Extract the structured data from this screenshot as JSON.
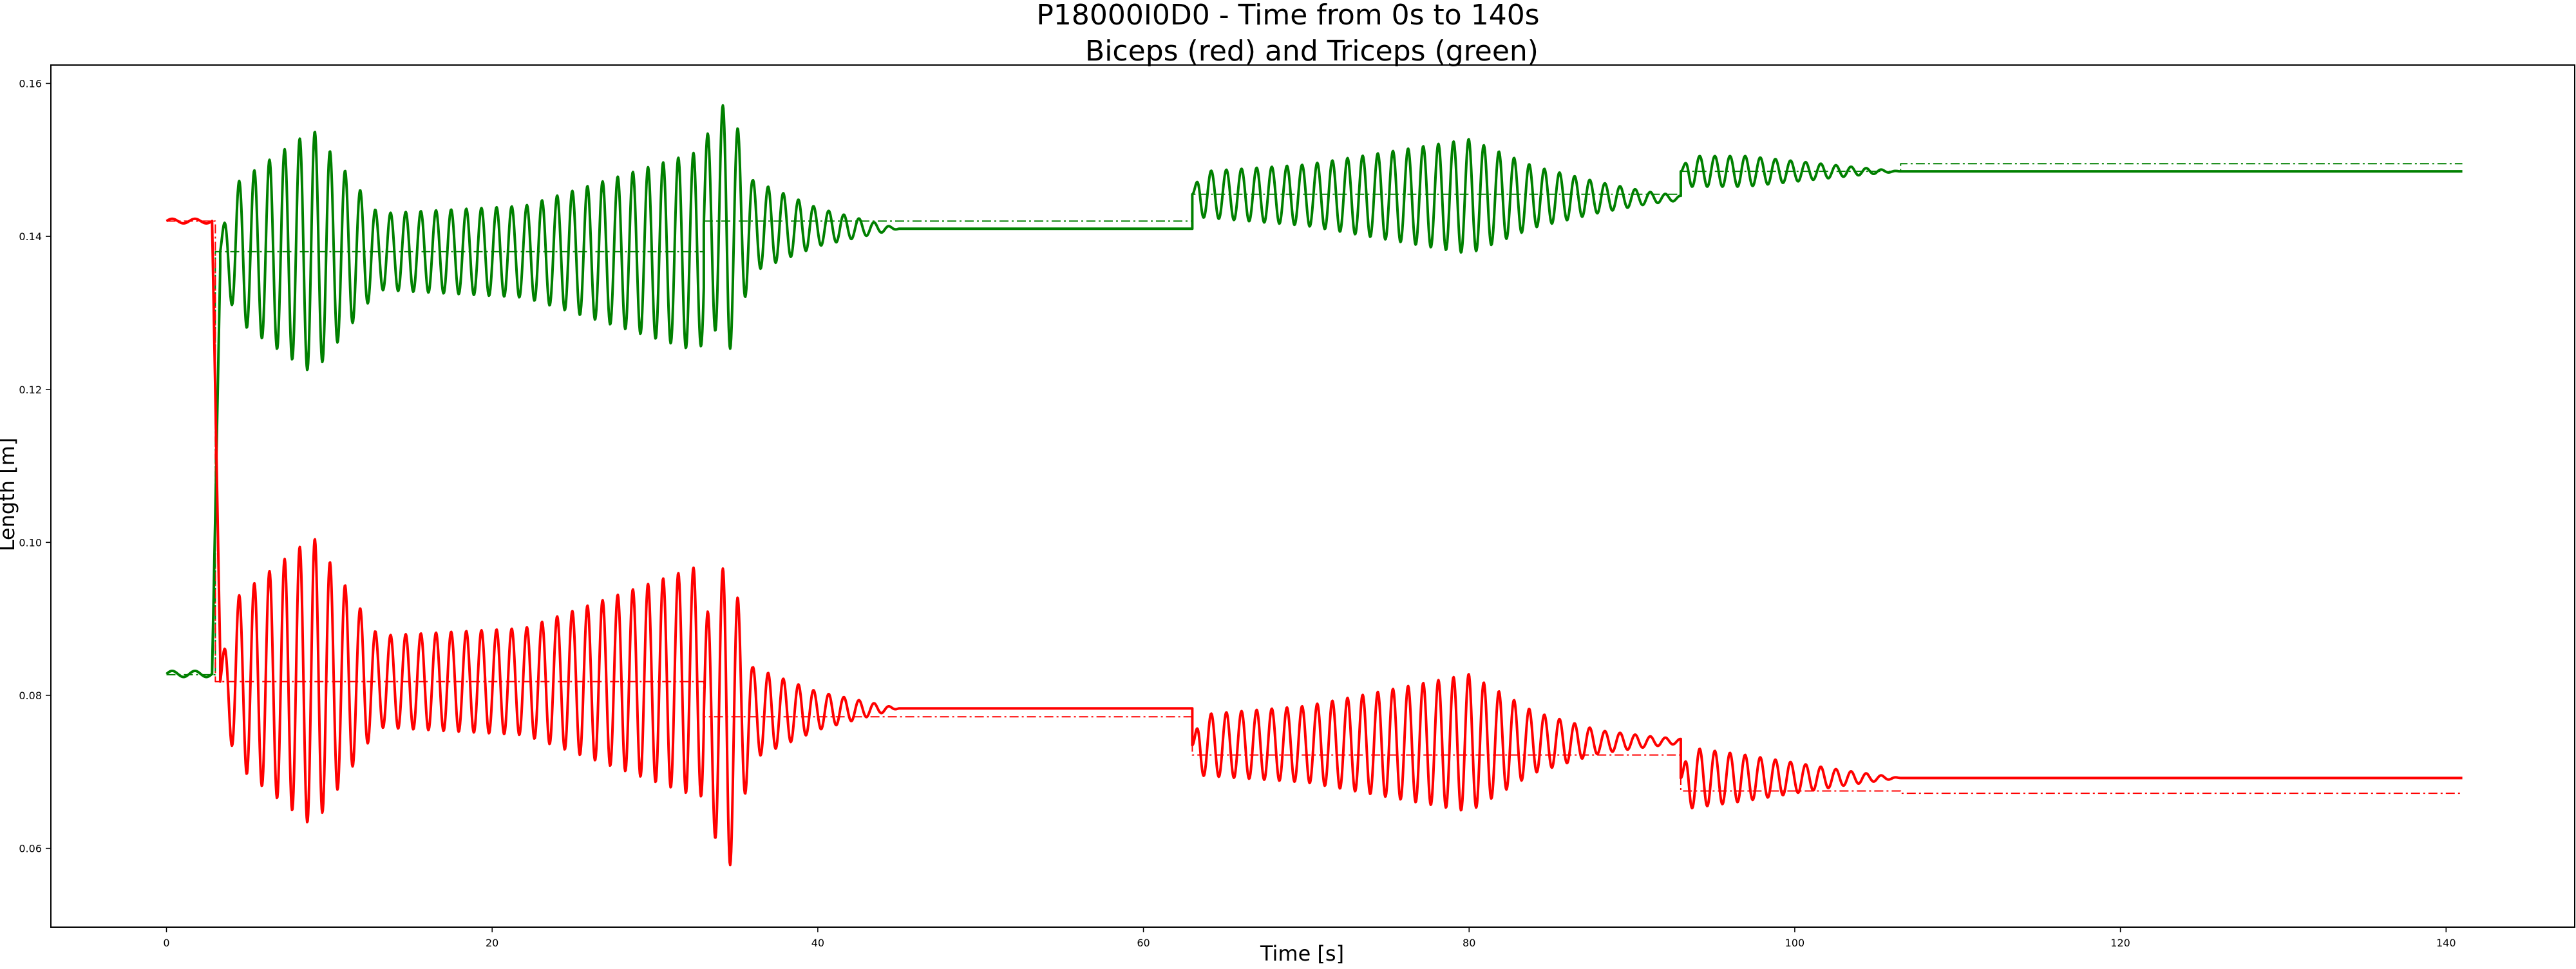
{
  "chart_data": {
    "type": "line",
    "title": "P18000I0D0 - Time from 0s to 140s",
    "subtitle": "Biceps (red) and Triceps (green)",
    "xlabel": "Time [s]",
    "ylabel": "Length [m]",
    "xlim": [
      -7.1,
      147.9
    ],
    "ylim": [
      0.0497,
      0.1624
    ],
    "xticks": [
      0,
      20,
      40,
      60,
      80,
      100,
      120,
      140
    ],
    "yticks": [
      0.06,
      0.08,
      0.1,
      0.12,
      0.14,
      0.16
    ],
    "ytick_labels": [
      "0.06",
      "0.08",
      "0.10",
      "0.12",
      "0.14",
      "0.16"
    ],
    "grid": false,
    "legend": "none",
    "colors": {
      "biceps": "#ff0000",
      "triceps": "#008000"
    },
    "series": [
      {
        "key": "triceps_target",
        "style": "dashdot",
        "color": "#008000",
        "x": [
          0,
          3.0,
          3.0,
          33.0,
          33.0,
          63.0,
          63.0,
          93.0,
          93.0,
          106.5,
          106.5,
          141
        ],
        "y": [
          0.0827,
          0.0827,
          0.138,
          0.138,
          0.142,
          0.142,
          0.1455,
          0.1455,
          0.1485,
          0.1485,
          0.1495,
          0.1495
        ]
      },
      {
        "key": "biceps_target",
        "style": "dashdot",
        "color": "#ff0000",
        "x": [
          0,
          3.0,
          3.0,
          33.0,
          33.0,
          63.0,
          63.0,
          93.0,
          93.0,
          106.5,
          106.5,
          141
        ],
        "y": [
          0.142,
          0.142,
          0.0818,
          0.0818,
          0.0772,
          0.0772,
          0.0722,
          0.0722,
          0.0675,
          0.0675,
          0.0672,
          0.0672
        ]
      },
      {
        "key": "triceps_actual",
        "style": "solid",
        "color": "#008000",
        "segments": [
          {
            "t0": 0,
            "t1": 2.8,
            "base": 0.0828,
            "env": [
              [
                0,
                0.0004
              ],
              [
                2.8,
                0.0004
              ]
            ],
            "period": 1.4
          },
          {
            "t0": 2.8,
            "t1": 3.3,
            "ramp": [
              0.0828,
              0.136
            ]
          },
          {
            "t0": 3.3,
            "t1": 33.0,
            "base": 0.138,
            "period": 0.93,
            "env": [
              [
                3.3,
                0.002
              ],
              [
                4.3,
                0.009
              ],
              [
                9.0,
                0.016
              ],
              [
                13.0,
                0.005
              ],
              [
                22.0,
                0.006
              ],
              [
                32.5,
                0.013
              ],
              [
                33.0,
                0.012
              ]
            ]
          },
          {
            "t0": 33.0,
            "t1": 63.0,
            "base": 0.1415,
            "period": 0.93,
            "env": [
              [
                33.0,
                0.011
              ],
              [
                34.5,
                0.017
              ],
              [
                36.0,
                0.006
              ],
              [
                40.0,
                0.0025
              ],
              [
                44.0,
                0.0005
              ],
              [
                45.0,
                0.0
              ],
              [
                63.0,
                0.0
              ]
            ],
            "drift": [
              [
                33.0,
                0.0
              ],
              [
                45.0,
                -0.0005
              ],
              [
                63.0,
                -0.0005
              ]
            ]
          },
          {
            "t0": 63.0,
            "t1": 93.0,
            "base": 0.1455,
            "period": 0.93,
            "env": [
              [
                63.0,
                0.0
              ],
              [
                63.5,
                0.003
              ],
              [
                70.0,
                0.004
              ],
              [
                80.0,
                0.0075
              ],
              [
                84.0,
                0.004
              ],
              [
                88.0,
                0.002
              ],
              [
                91.0,
                0.0008
              ],
              [
                93.0,
                0.0003
              ]
            ],
            "drift": [
              [
                63.0,
                0.0
              ],
              [
                93.0,
                -0.0005
              ]
            ]
          },
          {
            "t0": 93.0,
            "t1": 141,
            "base": 0.1485,
            "period": 0.93,
            "env": [
              [
                93.0,
                0.0
              ],
              [
                93.5,
                0.002
              ],
              [
                97.0,
                0.002
              ],
              [
                103.0,
                0.0007
              ],
              [
                106.5,
                0.0
              ],
              [
                141,
                0.0
              ]
            ]
          }
        ]
      },
      {
        "key": "biceps_actual",
        "style": "solid",
        "color": "#ff0000",
        "segments": [
          {
            "t0": 0,
            "t1": 2.8,
            "base": 0.142,
            "env": [
              [
                0,
                0.0003
              ],
              [
                2.8,
                0.0003
              ]
            ],
            "period": 1.4
          },
          {
            "t0": 2.8,
            "t1": 3.3,
            "ramp": [
              0.142,
              0.085
            ]
          },
          {
            "t0": 3.3,
            "t1": 33.0,
            "base": 0.0818,
            "period": 0.93,
            "env": [
              [
                3.3,
                0.002
              ],
              [
                4.3,
                0.011
              ],
              [
                9.0,
                0.019
              ],
              [
                13.0,
                0.006
              ],
              [
                22.0,
                0.007
              ],
              [
                32.5,
                0.015
              ],
              [
                33.0,
                0.015
              ]
            ]
          },
          {
            "t0": 33.0,
            "t1": 63.0,
            "base": 0.0775,
            "period": 0.93,
            "env": [
              [
                33.0,
                0.012
              ],
              [
                34.5,
                0.021
              ],
              [
                36.0,
                0.006
              ],
              [
                40.0,
                0.0025
              ],
              [
                44.0,
                0.0005
              ],
              [
                45.0,
                0.0
              ],
              [
                63.0,
                0.0
              ]
            ],
            "drift": [
              [
                33.0,
                0.0
              ],
              [
                45.0,
                0.0008
              ],
              [
                63.0,
                0.0008
              ]
            ]
          },
          {
            "t0": 63.0,
            "t1": 93.0,
            "base": 0.0735,
            "period": 0.93,
            "env": [
              [
                63.0,
                0.0
              ],
              [
                63.5,
                0.004
              ],
              [
                70.0,
                0.005
              ],
              [
                80.0,
                0.009
              ],
              [
                84.0,
                0.004
              ],
              [
                88.0,
                0.0015
              ],
              [
                91.0,
                0.0007
              ],
              [
                93.0,
                0.0003
              ]
            ],
            "drift": [
              [
                63.0,
                0.0
              ],
              [
                93.0,
                0.0005
              ]
            ]
          },
          {
            "t0": 93.0,
            "t1": 141,
            "base": 0.0692,
            "period": 0.93,
            "env": [
              [
                93.0,
                0.0
              ],
              [
                93.5,
                0.004
              ],
              [
                97.0,
                0.003
              ],
              [
                103.0,
                0.001
              ],
              [
                106.5,
                0.0
              ],
              [
                141,
                0.0
              ]
            ]
          }
        ]
      }
    ]
  }
}
